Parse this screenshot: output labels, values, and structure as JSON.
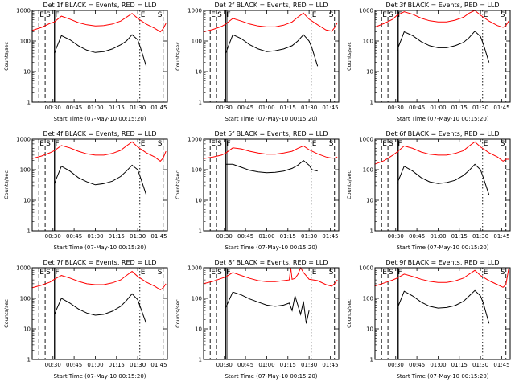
{
  "colors": {
    "events": "#000000",
    "lld": "#ff0000",
    "markers": "#000000"
  },
  "common": {
    "ylabel": "Counts/sec",
    "xlabel": "Start Time (07-May-10 00:15:20)",
    "xticks": [
      "00:30",
      "00:45",
      "01:00",
      "01:15",
      "01:30",
      "01:45"
    ],
    "yticks": [
      "1",
      "10",
      "100",
      "1000"
    ],
    "markers": [
      "E",
      "S",
      "F",
      "E",
      "S"
    ]
  },
  "chart_data": [
    {
      "type": "line",
      "title": "Det 1f BLACK = Events, RED = LLD",
      "yscale": "log",
      "ylim": [
        1,
        1000
      ],
      "xrange": [
        "00:15:20",
        "01:51:00"
      ],
      "series": [
        {
          "name": "Events",
          "x": [
            "00:31",
            "00:36",
            "00:42",
            "00:48",
            "00:54",
            "01:00",
            "01:06",
            "01:12",
            "01:18",
            "01:22",
            "01:26",
            "01:30",
            "01:32",
            "01:36"
          ],
          "values": [
            40,
            150,
            110,
            70,
            50,
            42,
            45,
            55,
            75,
            100,
            160,
            110,
            60,
            15
          ]
        },
        {
          "name": "LLD",
          "x": [
            "00:15",
            "00:22",
            "00:28",
            "00:31",
            "00:36",
            "00:42",
            "00:48",
            "00:54",
            "01:00",
            "01:06",
            "01:12",
            "01:18",
            "01:22",
            "01:26",
            "01:30",
            "01:36",
            "01:42",
            "01:46",
            "01:48",
            "01:50"
          ],
          "values": [
            220,
            280,
            380,
            420,
            650,
            520,
            400,
            340,
            310,
            320,
            360,
            450,
            600,
            800,
            550,
            360,
            260,
            200,
            250,
            380
          ]
        }
      ]
    },
    {
      "type": "line",
      "title": "Det 2f BLACK = Events, RED = LLD",
      "yscale": "log",
      "ylim": [
        1,
        1000
      ],
      "xrange": [
        "00:15:20",
        "01:51:00"
      ],
      "series": [
        {
          "name": "Events",
          "x": [
            "00:31",
            "00:36",
            "00:42",
            "00:48",
            "00:54",
            "01:00",
            "01:06",
            "01:12",
            "01:18",
            "01:22",
            "01:26",
            "01:30",
            "01:32",
            "01:36"
          ],
          "values": [
            40,
            160,
            120,
            75,
            55,
            45,
            48,
            55,
            70,
            100,
            160,
            100,
            60,
            15
          ]
        },
        {
          "name": "LLD",
          "x": [
            "00:15",
            "00:22",
            "00:28",
            "00:31",
            "00:36",
            "00:42",
            "00:48",
            "00:54",
            "01:00",
            "01:06",
            "01:12",
            "01:18",
            "01:22",
            "01:26",
            "01:30",
            "01:36",
            "01:42",
            "01:46",
            "01:48",
            "01:50"
          ],
          "values": [
            200,
            240,
            300,
            360,
            550,
            450,
            360,
            310,
            290,
            290,
            330,
            420,
            600,
            820,
            520,
            340,
            230,
            210,
            270,
            400
          ]
        }
      ]
    },
    {
      "type": "line",
      "title": "Det 3f BLACK = Events, RED = LLD",
      "yscale": "log",
      "ylim": [
        1,
        1000
      ],
      "xrange": [
        "00:15:20",
        "01:51:00"
      ],
      "series": [
        {
          "name": "Events",
          "x": [
            "00:31",
            "00:36",
            "00:42",
            "00:48",
            "00:54",
            "01:00",
            "01:06",
            "01:12",
            "01:18",
            "01:22",
            "01:26",
            "01:30",
            "01:32",
            "01:36"
          ],
          "values": [
            50,
            200,
            150,
            95,
            70,
            60,
            60,
            70,
            90,
            130,
            210,
            140,
            80,
            20
          ]
        },
        {
          "name": "LLD",
          "x": [
            "00:15",
            "00:22",
            "00:28",
            "00:31",
            "00:36",
            "00:42",
            "00:48",
            "00:54",
            "01:00",
            "01:06",
            "01:12",
            "01:18",
            "01:22",
            "01:26",
            "01:30",
            "01:36",
            "01:42",
            "01:46",
            "01:48",
            "01:50"
          ],
          "values": [
            280,
            380,
            520,
            700,
            900,
            750,
            560,
            460,
            420,
            420,
            480,
            600,
            820,
            1000,
            700,
            450,
            320,
            280,
            320,
            450
          ]
        }
      ]
    },
    {
      "type": "line",
      "title": "Det 4f BLACK = Events, RED = LLD",
      "yscale": "log",
      "ylim": [
        1,
        1000
      ],
      "xrange": [
        "00:15:20",
        "01:51:00"
      ],
      "series": [
        {
          "name": "Events",
          "x": [
            "00:31",
            "00:36",
            "00:42",
            "00:48",
            "00:54",
            "01:00",
            "01:06",
            "01:12",
            "01:18",
            "01:22",
            "01:26",
            "01:30",
            "01:32",
            "01:36"
          ],
          "values": [
            35,
            130,
            90,
            55,
            40,
            32,
            35,
            42,
            60,
            90,
            140,
            100,
            55,
            15
          ]
        },
        {
          "name": "LLD",
          "x": [
            "00:15",
            "00:22",
            "00:28",
            "00:31",
            "00:36",
            "00:42",
            "00:48",
            "00:54",
            "01:00",
            "01:06",
            "01:12",
            "01:18",
            "01:22",
            "01:26",
            "01:30",
            "01:36",
            "01:42",
            "01:46",
            "01:48",
            "01:50"
          ],
          "values": [
            230,
            280,
            360,
            420,
            620,
            520,
            400,
            330,
            300,
            300,
            340,
            430,
            600,
            820,
            560,
            360,
            260,
            190,
            240,
            400
          ]
        }
      ]
    },
    {
      "type": "line",
      "title": "Det 5f BLACK = Events, RED = LLD",
      "yscale": "log",
      "ylim": [
        1,
        1000
      ],
      "xrange": [
        "00:15:20",
        "01:51:00"
      ],
      "series": [
        {
          "name": "Events",
          "x": [
            "00:31",
            "00:36",
            "00:42",
            "00:48",
            "00:54",
            "01:00",
            "01:06",
            "01:12",
            "01:18",
            "01:22",
            "01:26",
            "01:30",
            "01:32",
            "01:36"
          ],
          "values": [
            150,
            150,
            120,
            95,
            85,
            80,
            82,
            90,
            110,
            140,
            200,
            140,
            100,
            90
          ]
        },
        {
          "name": "LLD",
          "x": [
            "00:15",
            "00:22",
            "00:28",
            "00:31",
            "00:36",
            "00:42",
            "00:48",
            "00:54",
            "01:00",
            "01:06",
            "01:12",
            "01:18",
            "01:22",
            "01:26",
            "01:30",
            "01:36",
            "01:42",
            "01:46",
            "01:48",
            "01:50"
          ],
          "values": [
            230,
            260,
            300,
            350,
            520,
            480,
            400,
            350,
            320,
            320,
            350,
            400,
            500,
            600,
            450,
            330,
            260,
            240,
            240,
            260
          ]
        }
      ]
    },
    {
      "type": "line",
      "title": "Det 6f BLACK = Events, RED = LLD",
      "yscale": "log",
      "ylim": [
        1,
        1000
      ],
      "xrange": [
        "00:15:20",
        "01:51:00"
      ],
      "series": [
        {
          "name": "Events",
          "x": [
            "00:31",
            "00:36",
            "00:42",
            "00:48",
            "00:54",
            "01:00",
            "01:06",
            "01:12",
            "01:18",
            "01:22",
            "01:26",
            "01:30",
            "01:32",
            "01:36"
          ],
          "values": [
            35,
            130,
            90,
            55,
            40,
            35,
            38,
            45,
            65,
            95,
            150,
            100,
            55,
            15
          ]
        },
        {
          "name": "LLD",
          "x": [
            "00:15",
            "00:22",
            "00:28",
            "00:31",
            "00:36",
            "00:42",
            "00:48",
            "00:54",
            "01:00",
            "01:06",
            "01:12",
            "01:18",
            "01:22",
            "01:26",
            "01:30",
            "01:36",
            "01:42",
            "01:46",
            "01:48",
            "01:50"
          ],
          "values": [
            150,
            200,
            300,
            380,
            600,
            500,
            380,
            320,
            300,
            300,
            340,
            420,
            600,
            820,
            560,
            360,
            260,
            190,
            220,
            220
          ]
        }
      ]
    },
    {
      "type": "line",
      "title": "Det 7f BLACK = Events, RED = LLD",
      "yscale": "log",
      "ylim": [
        1,
        1000
      ],
      "xrange": [
        "00:15:20",
        "01:51:00"
      ],
      "series": [
        {
          "name": "Events",
          "x": [
            "00:31",
            "00:36",
            "00:42",
            "00:48",
            "00:54",
            "01:00",
            "01:06",
            "01:12",
            "01:18",
            "01:22",
            "01:26",
            "01:30",
            "01:32",
            "01:36"
          ],
          "values": [
            30,
            100,
            70,
            45,
            33,
            28,
            30,
            38,
            55,
            85,
            140,
            90,
            50,
            15
          ]
        },
        {
          "name": "LLD",
          "x": [
            "00:15",
            "00:22",
            "00:28",
            "00:31",
            "00:36",
            "00:42",
            "00:48",
            "00:54",
            "01:00",
            "01:06",
            "01:12",
            "01:18",
            "01:22",
            "01:26",
            "01:30",
            "01:36",
            "01:42",
            "01:46",
            "01:48",
            "01:50"
          ],
          "values": [
            220,
            270,
            340,
            420,
            560,
            460,
            360,
            300,
            280,
            280,
            320,
            400,
            560,
            760,
            520,
            340,
            250,
            190,
            220,
            300
          ]
        }
      ]
    },
    {
      "type": "line",
      "title": "Det 8f BLACK = Events, RED = LLD",
      "yscale": "log",
      "ylim": [
        1,
        1000
      ],
      "xrange": [
        "00:15:20",
        "01:51:00"
      ],
      "series": [
        {
          "name": "Events",
          "x": [
            "00:31",
            "00:36",
            "00:42",
            "00:48",
            "00:54",
            "01:00",
            "01:06",
            "01:12",
            "01:16",
            "01:18",
            "01:20",
            "01:22",
            "01:24",
            "01:26",
            "01:28",
            "01:30"
          ],
          "values": [
            50,
            160,
            130,
            95,
            75,
            60,
            55,
            60,
            70,
            40,
            120,
            60,
            30,
            80,
            15,
            40
          ]
        },
        {
          "name": "LLD",
          "x": [
            "00:15",
            "00:22",
            "00:28",
            "00:31",
            "00:36",
            "00:42",
            "00:48",
            "00:54",
            "01:00",
            "01:06",
            "01:12",
            "01:16",
            "01:17",
            "01:18",
            "01:20",
            "01:22",
            "01:24",
            "01:26",
            "01:28",
            "01:30",
            "01:36",
            "01:42",
            "01:46",
            "01:48",
            "01:50"
          ],
          "values": [
            300,
            360,
            450,
            500,
            700,
            560,
            450,
            380,
            350,
            350,
            380,
            400,
            1000,
            420,
            450,
            600,
            1000,
            700,
            550,
            420,
            380,
            280,
            250,
            300,
            400
          ]
        }
      ]
    },
    {
      "type": "line",
      "title": "Det 9f BLACK = Events, RED = LLD",
      "yscale": "log",
      "ylim": [
        1,
        1000
      ],
      "xrange": [
        "00:15:20",
        "01:51:00"
      ],
      "series": [
        {
          "name": "Events",
          "x": [
            "00:31",
            "00:36",
            "00:42",
            "00:48",
            "00:54",
            "01:00",
            "01:06",
            "01:12",
            "01:18",
            "01:22",
            "01:26",
            "01:30",
            "01:32",
            "01:36"
          ],
          "values": [
            45,
            170,
            120,
            75,
            55,
            48,
            50,
            58,
            80,
            120,
            180,
            120,
            70,
            15
          ]
        },
        {
          "name": "LLD",
          "x": [
            "00:15",
            "00:22",
            "00:28",
            "00:31",
            "00:36",
            "00:42",
            "00:48",
            "00:54",
            "01:00",
            "01:06",
            "01:12",
            "01:18",
            "01:22",
            "01:26",
            "01:30",
            "01:36",
            "01:42",
            "01:46",
            "01:48",
            "01:50"
          ],
          "values": [
            250,
            320,
            400,
            460,
            620,
            520,
            420,
            360,
            330,
            330,
            370,
            460,
            620,
            820,
            560,
            380,
            280,
            230,
            280,
            950
          ]
        }
      ]
    }
  ]
}
